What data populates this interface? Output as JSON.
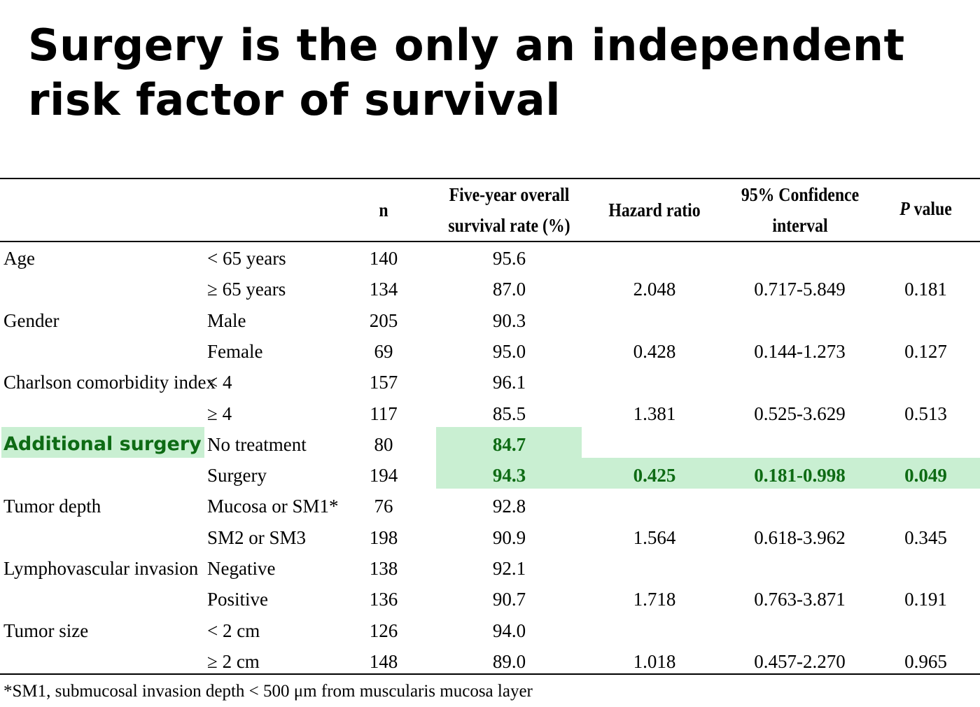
{
  "title": "Surgery is the only an independent risk factor of survival",
  "highlight_color": "#c9efd2",
  "highlight_text_color": "#0e6b14",
  "headers": {
    "n": "n",
    "rate_line1": "Five-year overall",
    "rate_line2": "survival rate (%)",
    "hr": "Hazard ratio",
    "ci_line1": "95% Confidence",
    "ci_line2": "interval",
    "p_italic": "P",
    "p_rest": " value"
  },
  "rows": [
    {
      "variable": "Age",
      "category": "< 65 years",
      "n": "140",
      "rate": "95.6",
      "hr": "",
      "ci": "",
      "p": ""
    },
    {
      "variable": "",
      "category": "≥ 65 years",
      "n": "134",
      "rate": "87.0",
      "hr": "2.048",
      "ci": "0.717-5.849",
      "p": "0.181"
    },
    {
      "variable": "Gender",
      "category": "Male",
      "n": "205",
      "rate": "90.3",
      "hr": "",
      "ci": "",
      "p": ""
    },
    {
      "variable": "",
      "category": "Female",
      "n": "69",
      "rate": "95.0",
      "hr": "0.428",
      "ci": "0.144-1.273",
      "p": "0.127"
    },
    {
      "variable": "Charlson comorbidity index",
      "category": "< 4",
      "n": "157",
      "rate": "96.1",
      "hr": "",
      "ci": "",
      "p": ""
    },
    {
      "variable": "",
      "category": "≥ 4",
      "n": "117",
      "rate": "85.5",
      "hr": "1.381",
      "ci": "0.525-3.629",
      "p": "0.513"
    },
    {
      "variable": "Additional surgery",
      "category": "No treatment",
      "n": "80",
      "rate": "84.7",
      "hr": "",
      "ci": "",
      "p": ""
    },
    {
      "variable": "",
      "category": "Surgery",
      "n": "194",
      "rate": "94.3",
      "hr": "0.425",
      "ci": "0.181-0.998",
      "p": "0.049"
    },
    {
      "variable": "Tumor depth",
      "category": "Mucosa or SM1*",
      "n": "76",
      "rate": "92.8",
      "hr": "",
      "ci": "",
      "p": ""
    },
    {
      "variable": "",
      "category": "SM2 or SM3",
      "n": "198",
      "rate": "90.9",
      "hr": "1.564",
      "ci": "0.618-3.962",
      "p": "0.345"
    },
    {
      "variable": "Lymphovascular invasion",
      "category": "Negative",
      "n": "138",
      "rate": "92.1",
      "hr": "",
      "ci": "",
      "p": ""
    },
    {
      "variable": "",
      "category": "Positive",
      "n": "136",
      "rate": "90.7",
      "hr": "1.718",
      "ci": "0.763-3.871",
      "p": "0.191"
    },
    {
      "variable": "Tumor size",
      "category": "< 2 cm",
      "n": "126",
      "rate": "94.0",
      "hr": "",
      "ci": "",
      "p": ""
    },
    {
      "variable": "",
      "category": "≥ 2 cm",
      "n": "148",
      "rate": "89.0",
      "hr": "1.018",
      "ci": "0.457-2.270",
      "p": "0.965"
    }
  ],
  "footnote": "*SM1, submucosal invasion depth < 500 μm from muscularis mucosa layer"
}
